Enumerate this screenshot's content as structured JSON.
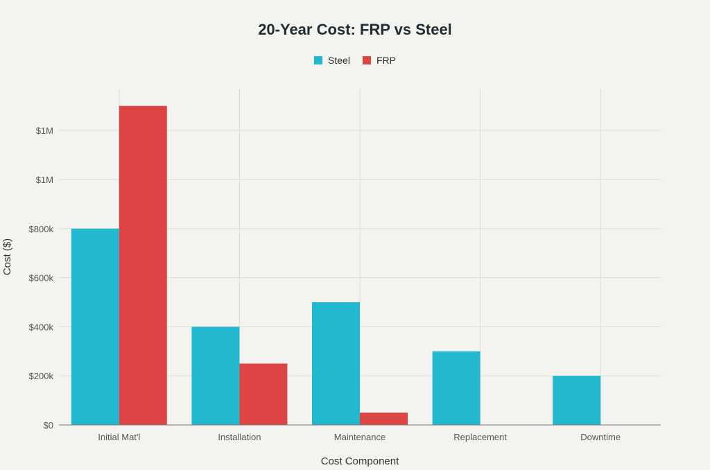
{
  "chart_data": {
    "type": "bar",
    "title": "20-Year Cost: FRP vs Steel",
    "xlabel": "Cost Component",
    "ylabel": "Cost ($)",
    "categories": [
      "Initial Mat'l",
      "Installation",
      "Maintenance",
      "Replacement",
      "Downtime"
    ],
    "series": [
      {
        "name": "Steel",
        "color": "#22b8cf",
        "values": [
          800000,
          400000,
          500000,
          300000,
          200000
        ]
      },
      {
        "name": "FRP",
        "color": "#dd4444",
        "values": [
          1300000,
          250000,
          50000,
          0,
          0
        ]
      }
    ],
    "ylim": [
      0,
      1370000
    ],
    "y_ticks": [
      0,
      200000,
      400000,
      600000,
      800000,
      1000000,
      1200000
    ],
    "y_tick_labels": [
      "$0",
      "$200k",
      "$400k",
      "$600k",
      "$800k",
      "$1M",
      "$1M"
    ],
    "grid": true,
    "legend_position": "top-center"
  }
}
